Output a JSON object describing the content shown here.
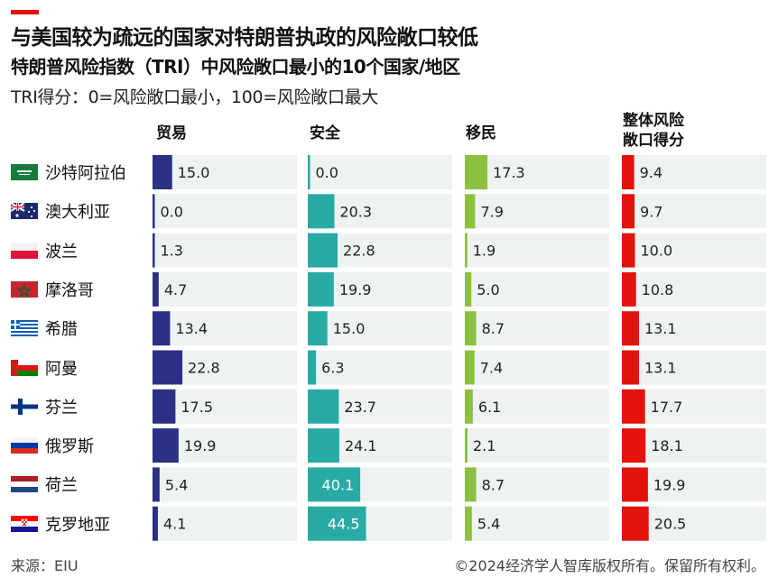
{
  "header": {
    "title": "与美国较为疏远的国家对特朗普执政的风险敞口较低",
    "subtitle": "特朗普风险指数（TRI）中风险敞口最小的10个国家/地区",
    "note": "TRI得分：0=风险敞口最小，100=风险敞口最大"
  },
  "footer": {
    "source": "来源：EIU",
    "copyright": "©2024经济学人智库版权所有。保留所有权利。"
  },
  "colors": {
    "accent": "#e3120b",
    "trade": "#2a3083",
    "security": "#29aaa5",
    "migration": "#8cc13f",
    "overall": "#e3120b",
    "track": "#eef2f2"
  },
  "chart_data": {
    "type": "bar",
    "title": "与美国较为疏远的国家对特朗普执政的风险敞口较低",
    "subtitle": "特朗普风险指数（TRI）中风险敞口最小的10个国家/地区",
    "categories": [
      "沙特阿拉伯",
      "澳大利亚",
      "波兰",
      "摩洛哥",
      "希腊",
      "阿曼",
      "芬兰",
      "俄罗斯",
      "荷兰",
      "克罗地亚"
    ],
    "flags": [
      "saudi-arabia-flag",
      "australia-flag",
      "poland-flag",
      "morocco-flag",
      "greece-flag",
      "oman-flag",
      "finland-flag",
      "russia-flag",
      "netherlands-flag",
      "croatia-flag"
    ],
    "series": [
      {
        "name": "贸易",
        "key": "trade",
        "values": [
          15.0,
          0.0,
          1.3,
          4.7,
          13.4,
          22.8,
          17.5,
          19.9,
          5.4,
          4.1
        ],
        "labels": [
          "15.0",
          "0.0",
          "1.3",
          "4.7",
          "13.4",
          "22.8",
          "17.5",
          "19.9",
          "5.4",
          "4.1"
        ]
      },
      {
        "name": "安全",
        "key": "security",
        "values": [
          0.0,
          20.3,
          22.8,
          19.9,
          15.0,
          6.3,
          23.7,
          24.1,
          40.1,
          44.5
        ],
        "labels": [
          "0.0",
          "20.3",
          "22.8",
          "19.9",
          "15.0",
          "6.3",
          "23.7",
          "24.1",
          "40.1",
          "44.5"
        ]
      },
      {
        "name": "移民",
        "key": "migration",
        "values": [
          17.3,
          7.9,
          1.9,
          5.0,
          8.7,
          7.4,
          6.1,
          2.1,
          8.7,
          5.4
        ],
        "labels": [
          "17.3",
          "7.9",
          "1.9",
          "5.0",
          "8.7",
          "7.4",
          "6.1",
          "2.1",
          "8.7",
          "5.4"
        ]
      },
      {
        "name": "整体风险\n敞口得分",
        "key": "overall",
        "values": [
          9.4,
          9.7,
          10.0,
          10.8,
          13.1,
          13.1,
          17.7,
          18.1,
          19.9,
          20.5
        ],
        "labels": [
          "9.4",
          "9.7",
          "10.0",
          "10.8",
          "13.1",
          "13.1",
          "17.7",
          "18.1",
          "19.9",
          "20.5"
        ]
      }
    ],
    "xlim": [
      0,
      100
    ],
    "grid": false,
    "legend": "none"
  }
}
